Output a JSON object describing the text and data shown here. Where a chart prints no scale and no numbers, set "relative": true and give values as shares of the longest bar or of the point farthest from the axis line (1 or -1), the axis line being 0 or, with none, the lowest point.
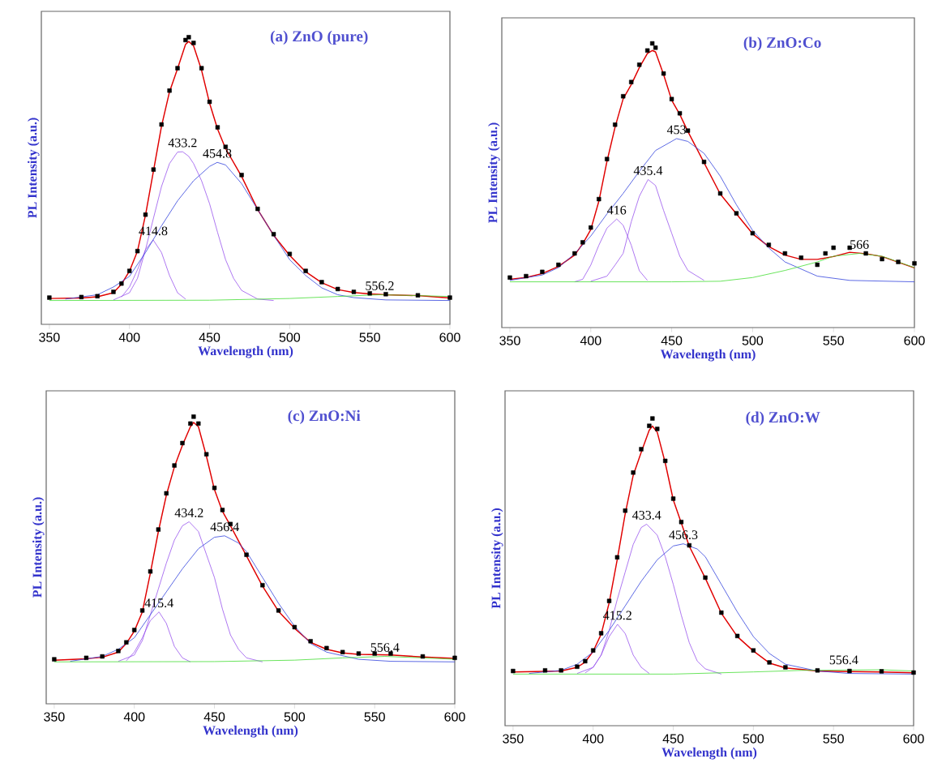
{
  "chart_data": [
    {
      "type": "line",
      "title": "(a) ZnO (pure)",
      "xlabel": "Wavelength (nm)",
      "ylabel": "PL Intensity (a.u.)",
      "xlim": [
        345,
        600
      ],
      "xticks": [
        350,
        400,
        450,
        500,
        550,
        600
      ],
      "relative": true,
      "series": [
        {
          "type": "scatter",
          "marker": "square",
          "color": "#000000",
          "x": [
            350,
            370,
            380,
            390,
            395,
            400,
            405,
            410,
            415,
            420,
            425,
            430,
            435,
            437,
            440,
            445,
            450,
            455,
            460,
            470,
            480,
            490,
            500,
            510,
            520,
            530,
            540,
            550,
            560,
            580,
            600
          ],
          "values": [
            0.093,
            0.095,
            0.098,
            0.113,
            0.142,
            0.186,
            0.255,
            0.382,
            0.539,
            0.696,
            0.814,
            0.892,
            0.99,
            1.0,
            0.98,
            0.892,
            0.775,
            0.686,
            0.618,
            0.52,
            0.402,
            0.314,
            0.245,
            0.186,
            0.147,
            0.123,
            0.113,
            0.108,
            0.105,
            0.101,
            0.093
          ]
        },
        {
          "type": "line",
          "color": "#e00000",
          "x": [
            350,
            370,
            380,
            390,
            395,
            400,
            405,
            410,
            415,
            420,
            425,
            430,
            435,
            437,
            440,
            445,
            450,
            455,
            460,
            470,
            480,
            490,
            500,
            510,
            520,
            530,
            540,
            550,
            560,
            580,
            600
          ],
          "values": [
            0.09,
            0.092,
            0.096,
            0.11,
            0.14,
            0.185,
            0.255,
            0.38,
            0.535,
            0.69,
            0.81,
            0.89,
            0.975,
            0.985,
            0.97,
            0.885,
            0.77,
            0.68,
            0.612,
            0.515,
            0.4,
            0.31,
            0.24,
            0.183,
            0.145,
            0.121,
            0.111,
            0.106,
            0.103,
            0.1,
            0.092
          ]
        },
        {
          "type": "line",
          "color": "#9955ee",
          "x": [
            395,
            400,
            405,
            410,
            414.8,
            420,
            425,
            430,
            435
          ],
          "values": [
            0.095,
            0.13,
            0.19,
            0.26,
            0.294,
            0.25,
            0.17,
            0.11,
            0.088
          ]
        },
        {
          "type": "line",
          "color": "#9955ee",
          "x": [
            390,
            400,
            405,
            410,
            415,
            420,
            425,
            430,
            433.2,
            437,
            440,
            445,
            450,
            455,
            460,
            465,
            470,
            480,
            490
          ],
          "values": [
            0.085,
            0.11,
            0.16,
            0.26,
            0.37,
            0.48,
            0.56,
            0.6,
            0.601,
            0.585,
            0.56,
            0.5,
            0.42,
            0.32,
            0.225,
            0.16,
            0.118,
            0.088,
            0.083
          ]
        },
        {
          "type": "line",
          "color": "#3344dd",
          "x": [
            360,
            380,
            390,
            400,
            410,
            420,
            430,
            440,
            450,
            454.8,
            460,
            470,
            480,
            490,
            500,
            510,
            520,
            530,
            540,
            560,
            600
          ],
          "values": [
            0.088,
            0.103,
            0.13,
            0.167,
            0.25,
            0.343,
            0.43,
            0.5,
            0.55,
            0.564,
            0.555,
            0.49,
            0.4,
            0.31,
            0.225,
            0.17,
            0.127,
            0.103,
            0.093,
            0.085,
            0.083
          ]
        },
        {
          "type": "line",
          "color": "#44dd33",
          "x": [
            350,
            450,
            500,
            530,
            556.2,
            580,
            600
          ],
          "values": [
            0.083,
            0.084,
            0.09,
            0.097,
            0.103,
            0.1,
            0.097
          ]
        }
      ],
      "annotations": [
        {
          "text": "414.8",
          "x": 414.8,
          "y": 0.294
        },
        {
          "text": "433.2",
          "x": 433.2,
          "y": 0.601
        },
        {
          "text": "454.8",
          "x": 454.8,
          "y": 0.564
        },
        {
          "text": "556.2",
          "x": 556.2,
          "y": 0.103
        }
      ]
    },
    {
      "type": "line",
      "title": "(b) ZnO:Co",
      "xlabel": "Wavelength (nm)",
      "ylabel": "PL Intensity (a.u.)",
      "xlim": [
        345,
        600
      ],
      "xticks": [
        350,
        400,
        450,
        500,
        550,
        600
      ],
      "relative": true,
      "series": [
        {
          "type": "scatter",
          "marker": "square",
          "color": "#000000",
          "x": [
            350,
            360,
            370,
            380,
            390,
            395,
            400,
            405,
            410,
            415,
            420,
            425,
            430,
            435,
            438,
            440,
            445,
            450,
            455,
            460,
            470,
            480,
            490,
            500,
            510,
            520,
            530,
            540,
            545,
            550,
            560,
            570,
            580,
            590,
            600
          ],
          "values": [
            0.176,
            0.181,
            0.196,
            0.221,
            0.261,
            0.3,
            0.352,
            0.452,
            0.593,
            0.714,
            0.814,
            0.864,
            0.925,
            0.975,
            1.0,
            0.985,
            0.894,
            0.804,
            0.754,
            0.693,
            0.583,
            0.472,
            0.402,
            0.332,
            0.291,
            0.261,
            0.246,
            0.221,
            0.261,
            0.281,
            0.281,
            0.261,
            0.241,
            0.231,
            0.226
          ]
        },
        {
          "type": "line",
          "color": "#e00000",
          "x": [
            350,
            360,
            370,
            380,
            390,
            395,
            400,
            405,
            410,
            415,
            420,
            425,
            430,
            435,
            438,
            440,
            445,
            450,
            455,
            460,
            470,
            480,
            490,
            500,
            510,
            520,
            530,
            540,
            545,
            550,
            560,
            570,
            580,
            590,
            600
          ],
          "values": [
            0.17,
            0.176,
            0.19,
            0.215,
            0.255,
            0.295,
            0.345,
            0.445,
            0.585,
            0.705,
            0.805,
            0.855,
            0.915,
            0.965,
            0.975,
            0.97,
            0.89,
            0.8,
            0.75,
            0.69,
            0.58,
            0.47,
            0.4,
            0.33,
            0.285,
            0.255,
            0.24,
            0.24,
            0.245,
            0.25,
            0.265,
            0.26,
            0.25,
            0.23,
            0.21
          ]
        },
        {
          "type": "line",
          "color": "#9955ee",
          "x": [
            390,
            395,
            400,
            405,
            410,
            416,
            420,
            425,
            430,
            435
          ],
          "values": [
            0.161,
            0.17,
            0.22,
            0.29,
            0.35,
            0.382,
            0.36,
            0.29,
            0.2,
            0.166
          ]
        },
        {
          "type": "line",
          "color": "#9955ee",
          "x": [
            400,
            410,
            415,
            420,
            425,
            430,
            435.4,
            440,
            445,
            450,
            455,
            460,
            470
          ],
          "values": [
            0.163,
            0.181,
            0.22,
            0.261,
            0.372,
            0.462,
            0.521,
            0.5,
            0.412,
            0.332,
            0.251,
            0.201,
            0.166
          ]
        },
        {
          "type": "line",
          "color": "#3344dd",
          "x": [
            350,
            370,
            380,
            390,
            400,
            410,
            420,
            430,
            440,
            453,
            460,
            470,
            480,
            490,
            500,
            510,
            520,
            540,
            560,
            600
          ],
          "values": [
            0.166,
            0.185,
            0.211,
            0.26,
            0.322,
            0.4,
            0.472,
            0.55,
            0.623,
            0.665,
            0.655,
            0.613,
            0.533,
            0.432,
            0.342,
            0.28,
            0.231,
            0.181,
            0.166,
            0.161
          ]
        },
        {
          "type": "line",
          "color": "#44dd33",
          "x": [
            350,
            450,
            480,
            500,
            520,
            540,
            550,
            566,
            580,
            590,
            600
          ],
          "values": [
            0.161,
            0.161,
            0.163,
            0.176,
            0.201,
            0.231,
            0.251,
            0.261,
            0.251,
            0.231,
            0.211
          ]
        }
      ],
      "annotations": [
        {
          "text": "416",
          "x": 416,
          "y": 0.382
        },
        {
          "text": "435.4",
          "x": 435.4,
          "y": 0.521
        },
        {
          "text": "453",
          "x": 453,
          "y": 0.665
        },
        {
          "text": "566",
          "x": 566,
          "y": 0.261
        }
      ]
    },
    {
      "type": "line",
      "title": "(c) ZnO:Ni",
      "xlabel": "Wavelength (nm)",
      "ylabel": "PL Intensity (a.u.)",
      "xlim": [
        345,
        600
      ],
      "xticks": [
        350,
        400,
        450,
        500,
        550,
        600
      ],
      "relative": true,
      "series": [
        {
          "type": "scatter",
          "marker": "square",
          "color": "#000000",
          "x": [
            350,
            370,
            380,
            390,
            395,
            400,
            405,
            410,
            415,
            420,
            425,
            430,
            435,
            437,
            440,
            445,
            450,
            455,
            460,
            470,
            480,
            490,
            500,
            510,
            520,
            530,
            540,
            550,
            560,
            580,
            600
          ],
          "values": [
            0.155,
            0.16,
            0.165,
            0.184,
            0.214,
            0.257,
            0.325,
            0.461,
            0.607,
            0.733,
            0.83,
            0.908,
            0.976,
            1.0,
            0.976,
            0.869,
            0.752,
            0.675,
            0.626,
            0.519,
            0.413,
            0.325,
            0.267,
            0.218,
            0.194,
            0.18,
            0.175,
            0.175,
            0.175,
            0.165,
            0.16
          ]
        },
        {
          "type": "line",
          "color": "#e00000",
          "x": [
            350,
            370,
            380,
            390,
            395,
            400,
            405,
            410,
            415,
            420,
            425,
            430,
            435,
            437,
            440,
            445,
            450,
            455,
            460,
            470,
            480,
            490,
            500,
            510,
            520,
            530,
            540,
            550,
            560,
            580,
            600
          ],
          "values": [
            0.152,
            0.157,
            0.162,
            0.18,
            0.21,
            0.253,
            0.32,
            0.455,
            0.6,
            0.727,
            0.825,
            0.9,
            0.965,
            0.98,
            0.965,
            0.862,
            0.746,
            0.67,
            0.62,
            0.515,
            0.41,
            0.322,
            0.263,
            0.214,
            0.19,
            0.177,
            0.172,
            0.171,
            0.17,
            0.163,
            0.158
          ]
        },
        {
          "type": "line",
          "color": "#9955ee",
          "x": [
            395,
            400,
            405,
            410,
            415.4,
            420,
            425,
            430,
            435
          ],
          "values": [
            0.15,
            0.18,
            0.23,
            0.29,
            0.32,
            0.28,
            0.2,
            0.16,
            0.146
          ]
        },
        {
          "type": "line",
          "color": "#9955ee",
          "x": [
            390,
            400,
            405,
            410,
            415,
            420,
            425,
            430,
            434.2,
            440,
            445,
            450,
            455,
            460,
            465,
            470,
            480
          ],
          "values": [
            0.148,
            0.17,
            0.22,
            0.31,
            0.4,
            0.49,
            0.57,
            0.62,
            0.634,
            0.6,
            0.52,
            0.44,
            0.33,
            0.24,
            0.19,
            0.16,
            0.146
          ]
        },
        {
          "type": "line",
          "color": "#3344dd",
          "x": [
            360,
            380,
            390,
            400,
            410,
            420,
            430,
            440,
            450,
            456.4,
            465,
            470,
            480,
            490,
            500,
            510,
            520,
            540,
            560,
            600
          ],
          "values": [
            0.148,
            0.165,
            0.19,
            0.23,
            0.31,
            0.39,
            0.47,
            0.54,
            0.58,
            0.585,
            0.56,
            0.53,
            0.44,
            0.35,
            0.27,
            0.21,
            0.18,
            0.155,
            0.148,
            0.146
          ]
        },
        {
          "type": "line",
          "color": "#44dd33",
          "x": [
            350,
            450,
            500,
            530,
            556.4,
            580,
            600
          ],
          "values": [
            0.146,
            0.147,
            0.152,
            0.16,
            0.165,
            0.16,
            0.155
          ]
        }
      ],
      "annotations": [
        {
          "text": "415.4",
          "x": 415.4,
          "y": 0.32
        },
        {
          "text": "434.2",
          "x": 434.2,
          "y": 0.634
        },
        {
          "text": "456.4",
          "x": 456.4,
          "y": 0.585
        },
        {
          "text": "556.4",
          "x": 556.4,
          "y": 0.165
        }
      ]
    },
    {
      "type": "line",
      "title": "(d) ZnO:W",
      "xlabel": "Wavelength (nm)",
      "ylabel": "PL Intensity (a.u.)",
      "xlim": [
        345,
        600
      ],
      "xticks": [
        350,
        400,
        450,
        500,
        550,
        600
      ],
      "relative": true,
      "series": [
        {
          "type": "scatter",
          "marker": "square",
          "color": "#000000",
          "x": [
            350,
            370,
            380,
            390,
            395,
            400,
            405,
            410,
            415,
            420,
            425,
            430,
            435,
            437,
            440,
            445,
            450,
            455,
            460,
            470,
            480,
            490,
            500,
            510,
            520,
            540,
            560,
            580,
            600
          ],
          "values": [
            0.178,
            0.18,
            0.18,
            0.192,
            0.21,
            0.245,
            0.301,
            0.406,
            0.548,
            0.7,
            0.824,
            0.9,
            0.976,
            1.0,
            0.966,
            0.862,
            0.739,
            0.663,
            0.587,
            0.482,
            0.368,
            0.292,
            0.245,
            0.206,
            0.19,
            0.18,
            0.178,
            0.177,
            0.173
          ]
        },
        {
          "type": "line",
          "color": "#e00000",
          "x": [
            350,
            370,
            380,
            390,
            395,
            400,
            405,
            410,
            415,
            420,
            425,
            430,
            435,
            437,
            440,
            445,
            450,
            455,
            460,
            470,
            480,
            490,
            500,
            510,
            520,
            540,
            560,
            580,
            600
          ],
          "values": [
            0.175,
            0.177,
            0.178,
            0.19,
            0.207,
            0.242,
            0.298,
            0.4,
            0.54,
            0.69,
            0.815,
            0.89,
            0.962,
            0.975,
            0.955,
            0.855,
            0.735,
            0.66,
            0.584,
            0.48,
            0.366,
            0.29,
            0.243,
            0.204,
            0.188,
            0.178,
            0.176,
            0.175,
            0.172
          ]
        },
        {
          "type": "line",
          "color": "#9955ee",
          "x": [
            395,
            400,
            405,
            410,
            415.2,
            420,
            425,
            430,
            435
          ],
          "values": [
            0.172,
            0.19,
            0.23,
            0.29,
            0.33,
            0.3,
            0.23,
            0.19,
            0.17
          ]
        },
        {
          "type": "line",
          "color": "#9955ee",
          "x": [
            390,
            400,
            405,
            410,
            415,
            420,
            425,
            430,
            433.4,
            440,
            445,
            450,
            455,
            460,
            465,
            470,
            480
          ],
          "values": [
            0.17,
            0.19,
            0.23,
            0.31,
            0.41,
            0.5,
            0.59,
            0.645,
            0.656,
            0.62,
            0.55,
            0.46,
            0.36,
            0.27,
            0.21,
            0.185,
            0.168
          ]
        },
        {
          "type": "line",
          "color": "#3344dd",
          "x": [
            360,
            380,
            390,
            400,
            410,
            420,
            430,
            440,
            450,
            456.3,
            465,
            470,
            480,
            490,
            500,
            510,
            520,
            540,
            560,
            600
          ],
          "values": [
            0.17,
            0.18,
            0.2,
            0.24,
            0.31,
            0.39,
            0.47,
            0.54,
            0.585,
            0.592,
            0.575,
            0.55,
            0.46,
            0.37,
            0.29,
            0.235,
            0.2,
            0.178,
            0.17,
            0.168
          ]
        },
        {
          "type": "line",
          "color": "#44dd33",
          "x": [
            350,
            450,
            500,
            530,
            556.4,
            580,
            600
          ],
          "values": [
            0.168,
            0.168,
            0.175,
            0.18,
            null,
            0.182,
            0.178
          ]
        }
      ],
      "annotations": [
        {
          "text": "415.2",
          "x": 415.2,
          "y": 0.33
        },
        {
          "text": "433.4",
          "x": 433.4,
          "y": 0.656
        },
        {
          "text": "456.3",
          "x": 456.3,
          "y": 0.592
        },
        {
          "text": "556.4",
          "x": 556.4,
          "y": 0.185
        }
      ]
    }
  ]
}
